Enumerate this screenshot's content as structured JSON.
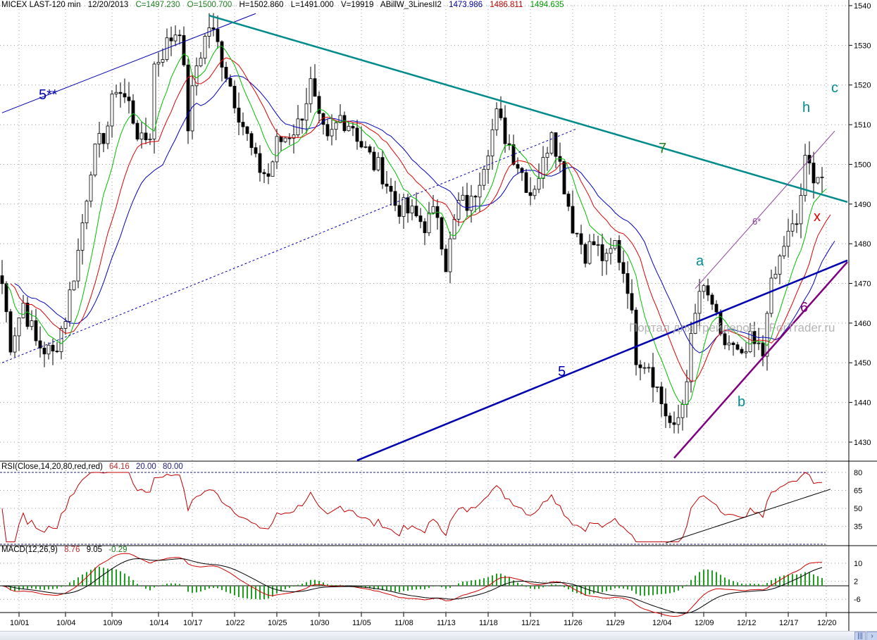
{
  "header": {
    "symbol": "MICEX LAST-120 min",
    "date": "12/20/2013",
    "close": "C=1497.230",
    "open": "O=1500.700",
    "high": "H=1502.860",
    "low": "L=1491.000",
    "volume": "V=19919",
    "indicator": "ABillW_3LinesII2",
    "ma1": "1473.986",
    "ma2": "1486.811",
    "ma3": "1494.635"
  },
  "rsi_label": {
    "name": "RSI(Close,14,20,80,red,red)",
    "value": "64.16",
    "low": "20.00",
    "high": "80.00"
  },
  "macd_label": {
    "name": "MACD(12,26,9)",
    "macd": "8.76",
    "signal": "9.05",
    "hist": "-0.29"
  },
  "watermark": "Портал для трейдеров – ForTrader.ru",
  "annotations": {
    "a": "5**",
    "b": "7",
    "c": "5",
    "d": "6",
    "e": "6*",
    "f": "a",
    "g": "b",
    "h": "h",
    "i": "c",
    "j": "x"
  },
  "colors": {
    "ma_fast": "#00c000",
    "ma_mid": "#e00000",
    "ma_slow": "#0000c0",
    "line7": "#008b8b",
    "line5": "#0000b0",
    "line6": "#800080",
    "rsi": "#c00000"
  },
  "chart_data": {
    "type": "candlestick",
    "price_ticks": [
      1430,
      1440,
      1450,
      1460,
      1470,
      1480,
      1490,
      1500,
      1510,
      1520,
      1530,
      1540
    ],
    "ylim": [
      1422,
      1541
    ],
    "rsi_ticks": [
      35,
      50,
      65,
      80
    ],
    "rsi_levels": [
      20,
      80
    ],
    "macd_ticks": [
      -6,
      2,
      10
    ],
    "date_ticks": [
      "10/01",
      "10/04",
      "10/09",
      "10/14",
      "10/17",
      "10/22",
      "10/25",
      "10/30",
      "11/05",
      "11/08",
      "11/13",
      "11/18",
      "11/21",
      "11/26",
      "11/29",
      "12/04",
      "12/09",
      "12/12",
      "12/17",
      "12/20"
    ],
    "date_tick_bars": [
      4,
      15,
      26,
      37,
      45,
      55,
      65,
      75,
      85,
      95,
      105,
      115,
      125,
      135,
      145,
      156,
      166,
      176,
      186,
      195
    ],
    "close_path": [
      [
        0,
        1470
      ],
      [
        2,
        1455
      ],
      [
        5,
        1465
      ],
      [
        8,
        1455
      ],
      [
        12,
        1452
      ],
      [
        15,
        1462
      ],
      [
        18,
        1478
      ],
      [
        21,
        1500
      ],
      [
        25,
        1510
      ],
      [
        27,
        1520
      ],
      [
        30,
        1515
      ],
      [
        33,
        1505
      ],
      [
        35,
        1508
      ],
      [
        36,
        1525
      ],
      [
        40,
        1532
      ],
      [
        42,
        1535
      ],
      [
        44,
        1510
      ],
      [
        46,
        1525
      ],
      [
        49,
        1535
      ],
      [
        51,
        1530
      ],
      [
        54,
        1520
      ],
      [
        57,
        1510
      ],
      [
        60,
        1500
      ],
      [
        63,
        1497
      ],
      [
        65,
        1505
      ],
      [
        68,
        1508
      ],
      [
        70,
        1510
      ],
      [
        73,
        1520
      ],
      [
        75,
        1510
      ],
      [
        77,
        1505
      ],
      [
        80,
        1512
      ],
      [
        83,
        1510
      ],
      [
        85,
        1505
      ],
      [
        88,
        1500
      ],
      [
        90,
        1498
      ],
      [
        93,
        1490
      ],
      [
        96,
        1488
      ],
      [
        100,
        1485
      ],
      [
        103,
        1488
      ],
      [
        105,
        1475
      ],
      [
        108,
        1490
      ],
      [
        111,
        1490
      ],
      [
        115,
        1505
      ],
      [
        117,
        1512
      ],
      [
        120,
        1505
      ],
      [
        123,
        1498
      ],
      [
        125,
        1493
      ],
      [
        128,
        1500
      ],
      [
        130,
        1510
      ],
      [
        133,
        1495
      ],
      [
        135,
        1485
      ],
      [
        138,
        1478
      ],
      [
        140,
        1480
      ],
      [
        143,
        1475
      ],
      [
        145,
        1480
      ],
      [
        148,
        1470
      ],
      [
        150,
        1452
      ],
      [
        153,
        1450
      ],
      [
        156,
        1440
      ],
      [
        159,
        1432
      ],
      [
        161,
        1440
      ],
      [
        163,
        1455
      ],
      [
        165,
        1468
      ],
      [
        168,
        1465
      ],
      [
        170,
        1455
      ],
      [
        172,
        1455
      ],
      [
        175,
        1450
      ],
      [
        177,
        1455
      ],
      [
        180,
        1452
      ],
      [
        181,
        1465
      ],
      [
        183,
        1472
      ],
      [
        185,
        1480
      ],
      [
        188,
        1485
      ],
      [
        190,
        1500
      ],
      [
        192,
        1498
      ],
      [
        194,
        1497
      ]
    ],
    "trend_lines": [
      {
        "label": "5**",
        "from": [
          0,
          1513
        ],
        "to": [
          60,
          1538
        ]
      },
      {
        "label": "",
        "from": [
          0,
          1450
        ],
        "to": [
          136,
          1509
        ],
        "dashed": true
      },
      {
        "label": "7",
        "from": [
          49,
          1537.5
        ],
        "to": [
          200,
          1490.5
        ]
      },
      {
        "label": "5",
        "from": [
          84,
          1425.4
        ],
        "to": [
          200,
          1475.8
        ]
      },
      {
        "label": "6",
        "from": [
          159,
          1426
        ],
        "to": [
          200,
          1475.4
        ]
      },
      {
        "label": "6*",
        "from": [
          164,
          1468.7
        ],
        "to": [
          197,
          1508.4
        ]
      }
    ],
    "rsi_trend_line": {
      "from": [
        157,
        21
      ],
      "to": [
        196,
        66
      ]
    }
  }
}
